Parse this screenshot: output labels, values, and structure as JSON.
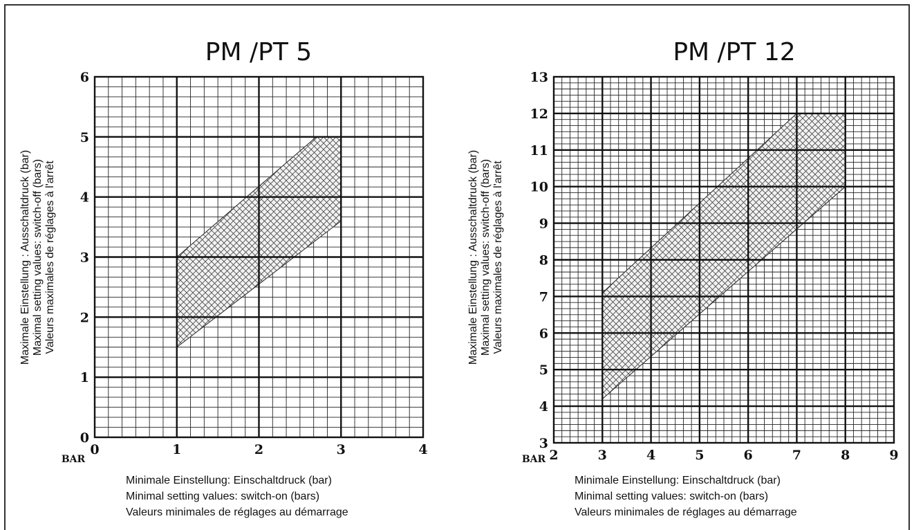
{
  "chart_data": [
    {
      "type": "area",
      "title": "PM /PT 5",
      "unit_label": "BAR",
      "xlim": [
        0,
        4
      ],
      "ylim": [
        0,
        6
      ],
      "x_ticks": [
        "0",
        "1",
        "2",
        "3",
        "4"
      ],
      "y_ticks": [
        "0",
        "1",
        "2",
        "3",
        "4",
        "5",
        "6"
      ],
      "xlabel": [
        "Minimale Einstellung: Einschaltdruck (bar)",
        "Minimal setting values: switch-on (bars)",
        "Valeurs minimales de réglages au démarrage"
      ],
      "ylabel": [
        "Maximale Einstellung : Ausschaltdruck (bar)",
        "Maximal setting values: switch-off (bars)",
        "Valeurs maximales de réglages à l'arrêt"
      ],
      "grid": true,
      "region": [
        [
          1,
          1.5
        ],
        [
          1,
          3
        ],
        [
          2.7,
          5
        ],
        [
          3,
          5
        ],
        [
          3,
          3.6
        ]
      ]
    },
    {
      "type": "area",
      "title": "PM /PT 12",
      "unit_label": "BAR",
      "xlim": [
        2,
        9
      ],
      "ylim": [
        3,
        13
      ],
      "x_ticks": [
        "2",
        "3",
        "4",
        "5",
        "6",
        "7",
        "8",
        "9"
      ],
      "y_ticks": [
        "3",
        "4",
        "5",
        "6",
        "7",
        "8",
        "9",
        "10",
        "11",
        "12",
        "13"
      ],
      "xlabel": [
        "Minimale Einstellung: Einschaltdruck (bar)",
        "Minimal setting values: switch-on (bars)",
        "Valeurs minimales de réglages au démarrage"
      ],
      "ylabel": [
        "Maximale Einstellung : Ausschaltdruck (bar)",
        "Maximal setting values: switch-off (bars)",
        "Valeurs maximales de réglages à l'arrêt"
      ],
      "grid": true,
      "region": [
        [
          3,
          4.2
        ],
        [
          3,
          7.1
        ],
        [
          7,
          12
        ],
        [
          8,
          12
        ],
        [
          8,
          10
        ]
      ]
    }
  ]
}
